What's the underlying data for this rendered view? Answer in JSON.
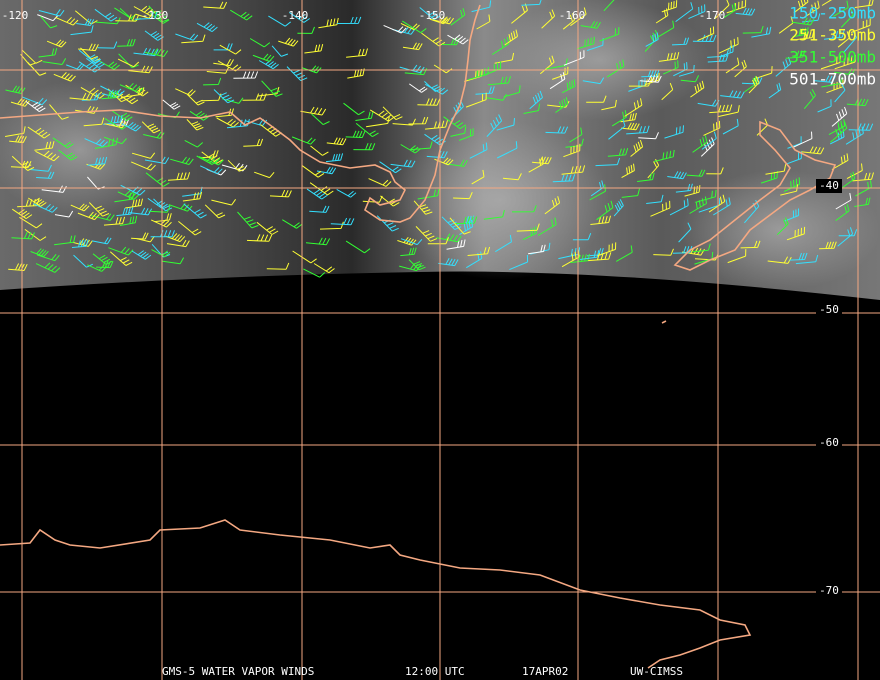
{
  "map": {
    "lon_labels": [
      "-120",
      "-130",
      "-140",
      "-150",
      "-160",
      "-170"
    ],
    "lat_labels": [
      "-40",
      "-50",
      "-60",
      "-70"
    ],
    "legend": [
      {
        "label": "150-250mb",
        "color": "#33e0ff"
      },
      {
        "label": "251-350mb",
        "color": "#ffff33"
      },
      {
        "label": "351-500mb",
        "color": "#33ff33"
      },
      {
        "label": "501-700mb",
        "color": "#ffffff"
      }
    ],
    "footer": [
      "GMS-5 WATER VAPOR WINDS",
      "12:00 UTC",
      "17APR02",
      "UW-CIMSS"
    ]
  }
}
